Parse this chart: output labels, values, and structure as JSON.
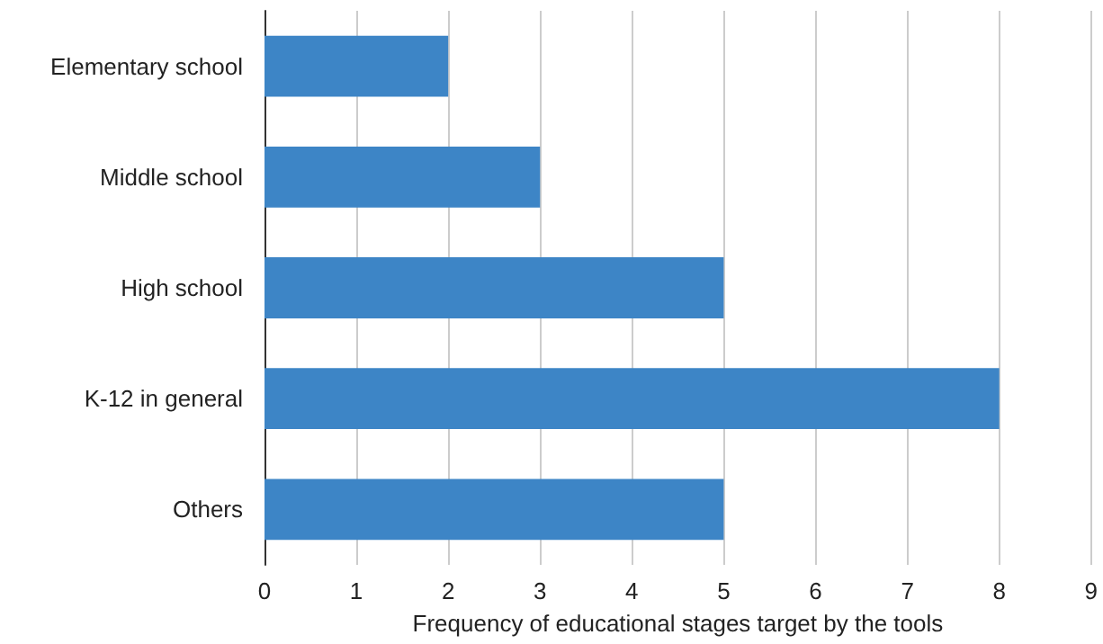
{
  "chart_data": {
    "type": "bar",
    "orientation": "horizontal",
    "xlabel": "Frequency of educational stages target by the tools",
    "categories": [
      "Elementary school",
      "Middle school",
      "High school",
      "K-12 in general",
      "Others"
    ],
    "values": [
      2,
      3,
      5,
      8,
      5
    ],
    "color": "#3d85c6",
    "xlim": [
      0,
      9
    ],
    "xticks": [
      0,
      1,
      2,
      3,
      4,
      5,
      6,
      7,
      8,
      9
    ],
    "grid": "x"
  }
}
